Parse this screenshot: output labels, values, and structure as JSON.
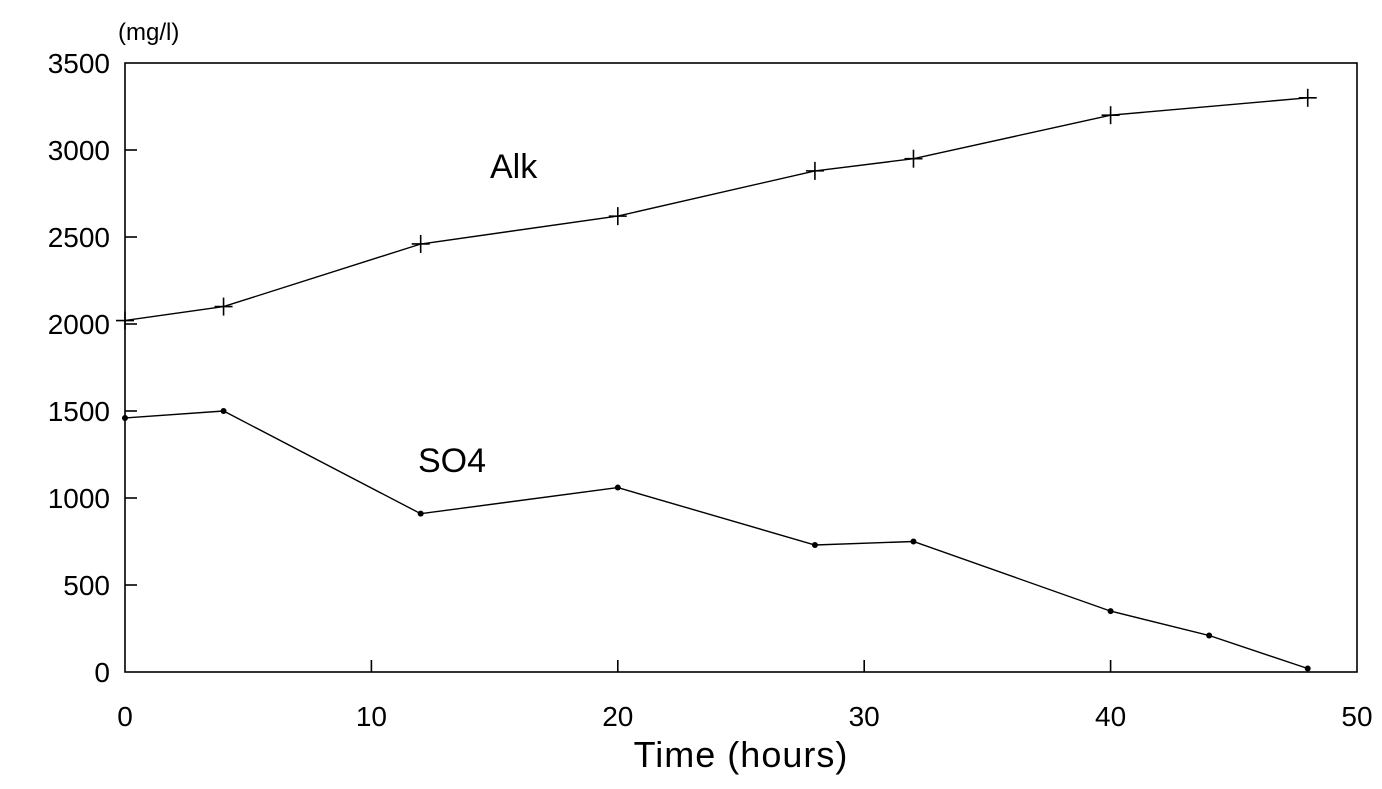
{
  "chart_data": {
    "type": "line",
    "title": "",
    "xlabel": "Time (hours)",
    "ylabel": "(mg/l)",
    "xlim": [
      0,
      50
    ],
    "ylim": [
      0,
      3500
    ],
    "x_ticks": [
      0,
      10,
      20,
      30,
      40,
      50
    ],
    "y_ticks": [
      0,
      500,
      1000,
      1500,
      2000,
      2500,
      3000,
      3500
    ],
    "x_tick_labels": [
      "0",
      "10",
      "20",
      "30",
      "40",
      "50"
    ],
    "y_tick_labels": [
      "0",
      "500",
      "1000",
      "1500",
      "2000",
      "2500",
      "3000",
      "3500"
    ],
    "grid": false,
    "legend": "none",
    "series": [
      {
        "name": "Alk",
        "marker": "plus",
        "color": "#000000",
        "x": [
          0,
          4,
          12,
          20,
          28,
          32,
          40,
          48
        ],
        "y": [
          2020,
          2100,
          2460,
          2620,
          2880,
          2950,
          3200,
          3300
        ]
      },
      {
        "name": "SO4",
        "marker": "dot",
        "color": "#000000",
        "x": [
          0,
          4,
          12,
          20,
          28,
          32,
          40,
          44,
          48
        ],
        "y": [
          1460,
          1500,
          910,
          1060,
          730,
          750,
          350,
          210,
          20
        ]
      }
    ]
  }
}
